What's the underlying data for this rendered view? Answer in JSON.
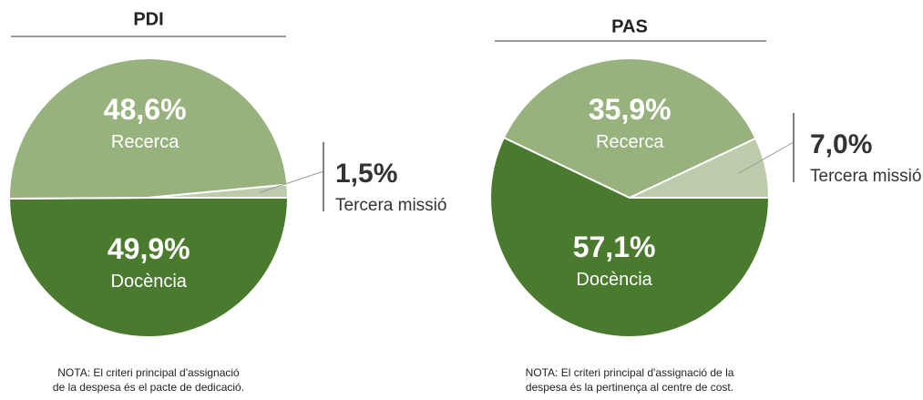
{
  "chart_data": [
    {
      "type": "pie",
      "title": "PDI",
      "categories": [
        "Docència",
        "Recerca",
        "Tercera missió"
      ],
      "values": [
        49.9,
        48.6,
        1.5
      ],
      "value_labels": [
        "49,9%",
        "48,6%",
        "1,5%"
      ],
      "colors": [
        "#4a7a2e",
        "#98b27e",
        "#bccba9"
      ],
      "note": [
        "NOTA: El criteri principal d'assignació",
        "de la despesa és el pacte de dedicació."
      ]
    },
    {
      "type": "pie",
      "title": "PAS",
      "categories": [
        "Docència",
        "Recerca",
        "Tercera missió"
      ],
      "values": [
        57.1,
        35.9,
        7.0
      ],
      "value_labels": [
        "57,1%",
        "35,9%",
        "7,0%"
      ],
      "colors": [
        "#4a7a2e",
        "#98b27e",
        "#bccba9"
      ],
      "note": [
        "NOTA: El criteri principal d'assignació de la",
        "despesa és la pertinença al centre de cost."
      ]
    }
  ]
}
